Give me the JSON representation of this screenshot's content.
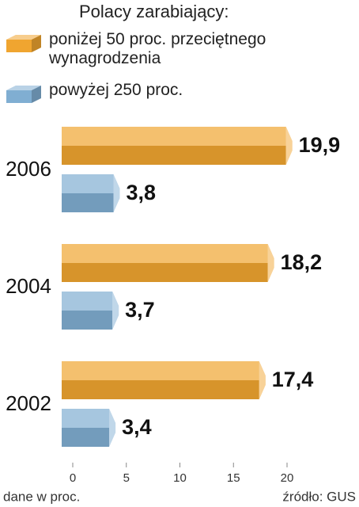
{
  "chart_data": {
    "type": "bar",
    "orientation": "horizontal",
    "legend_title": "Polacy zarabiający:",
    "categories": [
      "2006",
      "2004",
      "2002"
    ],
    "series": [
      {
        "name": "poniżej 50 proc. przeciętnego wynagrodzenia",
        "color": "#f0a530",
        "values": [
          19.9,
          18.2,
          17.4
        ],
        "value_labels": [
          "19,9",
          "18,2",
          "17,4"
        ]
      },
      {
        "name": "powyżej 250 proc.",
        "color": "#80aed2",
        "values": [
          3.8,
          3.7,
          3.4
        ],
        "value_labels": [
          "3,8",
          "3,7",
          "3,4"
        ]
      }
    ],
    "xlim": [
      0,
      20
    ],
    "xticks": [
      0,
      5,
      10,
      15,
      20
    ],
    "xlabel": "dane w proc.",
    "source": "źródło: GUS"
  }
}
